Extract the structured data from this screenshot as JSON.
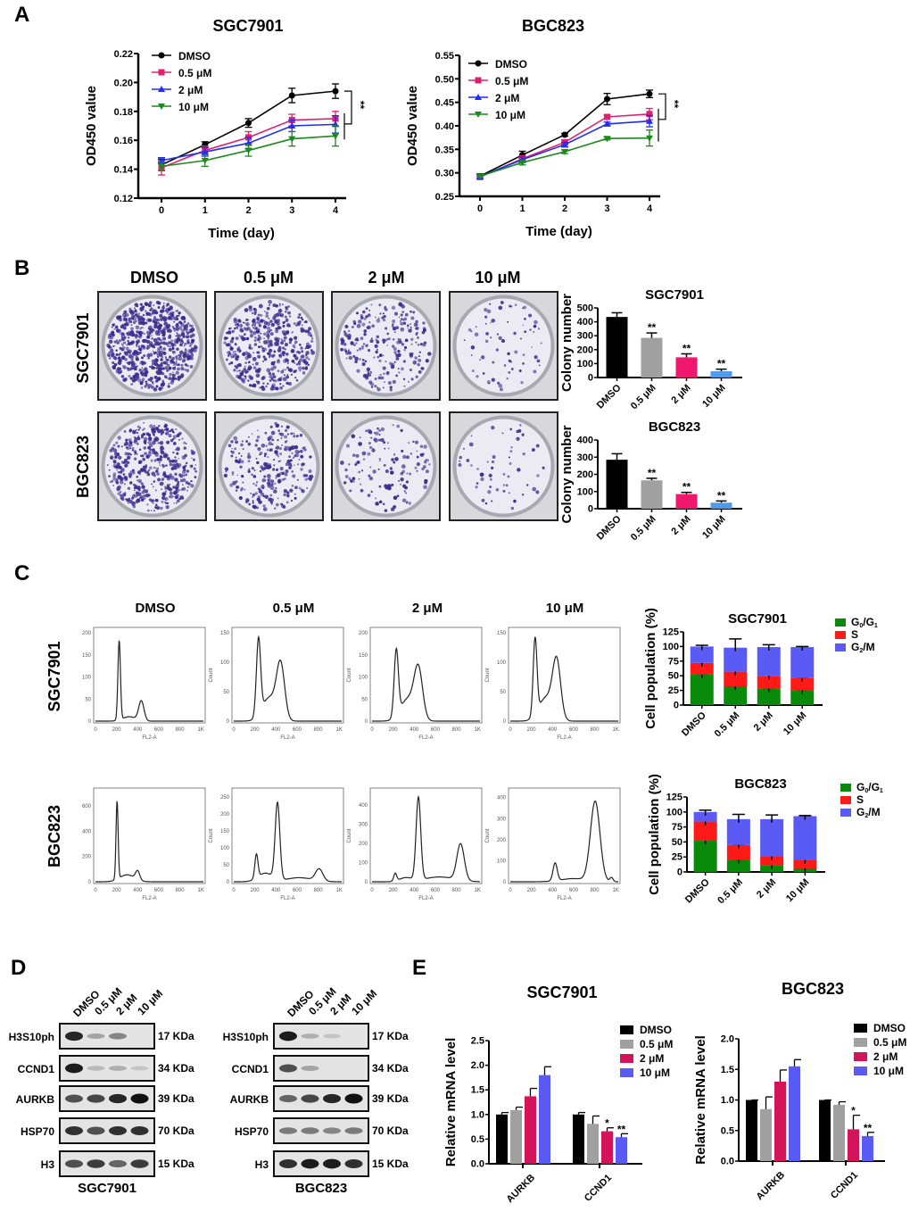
{
  "panels": {
    "A": "A",
    "B": "B",
    "C": "C",
    "D": "D",
    "E": "E"
  },
  "conditions": [
    "DMSO",
    "0.5 μM",
    "2 μM",
    "10 μM"
  ],
  "cell_lines": [
    "SGC7901",
    "BGC823"
  ],
  "significance": {
    "double": "**",
    "single": "*"
  },
  "colors": {
    "dmso": "#000000",
    "c05": "#e0206e",
    "c2": "#1f2df5",
    "c10": "#1a8a1a",
    "gray": "#a0a0a0",
    "pink": "#f0186e",
    "lightblue": "#4f9be8",
    "g0g1": "#0a8a0a",
    "s": "#ff1a1a",
    "g2m": "#5a5af5",
    "mrna_pink": "#d4145a",
    "mrna_blue": "#5a5af5"
  },
  "chart_data": [
    {
      "id": "A1",
      "type": "line",
      "title": "SGC7901",
      "xlabel": "Time (day)",
      "ylabel": "OD450 value",
      "x": [
        0,
        1,
        2,
        3,
        4
      ],
      "ylim": [
        0.12,
        0.22
      ],
      "yticks": [
        "0.12",
        "0.14",
        "0.16",
        "0.18",
        "0.20",
        "0.22"
      ],
      "legend": "top-left",
      "annotation": "**",
      "series": [
        {
          "name": "DMSO",
          "values": [
            0.143,
            0.157,
            0.172,
            0.191,
            0.194
          ],
          "err": [
            0.004,
            0.002,
            0.003,
            0.005,
            0.005
          ]
        },
        {
          "name": "0.5 μM",
          "values": [
            0.141,
            0.153,
            0.162,
            0.174,
            0.175
          ],
          "err": [
            0.005,
            0.003,
            0.004,
            0.004,
            0.005
          ]
        },
        {
          "name": "2 μM",
          "values": [
            0.146,
            0.152,
            0.158,
            0.17,
            0.171
          ],
          "err": [
            0.002,
            0.003,
            0.004,
            0.004,
            0.006
          ]
        },
        {
          "name": "10 μM",
          "values": [
            0.142,
            0.146,
            0.153,
            0.161,
            0.163
          ],
          "err": [
            0.003,
            0.004,
            0.004,
            0.005,
            0.007
          ]
        }
      ]
    },
    {
      "id": "A2",
      "type": "line",
      "title": "BGC823",
      "xlabel": "Time (day)",
      "ylabel": "OD450 value",
      "x": [
        0,
        1,
        2,
        3,
        4
      ],
      "ylim": [
        0.25,
        0.55
      ],
      "yticks": [
        "0.25",
        "0.30",
        "0.35",
        "0.40",
        "0.45",
        "0.50",
        "0.55"
      ],
      "legend": "top-left",
      "annotation": "**",
      "series": [
        {
          "name": "DMSO",
          "values": [
            0.293,
            0.338,
            0.381,
            0.457,
            0.468
          ],
          "err": [
            0.005,
            0.008,
            0.003,
            0.012,
            0.008
          ]
        },
        {
          "name": "0.5 μM",
          "values": [
            0.291,
            0.33,
            0.365,
            0.419,
            0.425
          ],
          "err": [
            0.004,
            0.006,
            0.005,
            0.004,
            0.012
          ]
        },
        {
          "name": "2 μM",
          "values": [
            0.292,
            0.328,
            0.36,
            0.404,
            0.41
          ],
          "err": [
            0.004,
            0.006,
            0.005,
            0.004,
            0.012
          ]
        },
        {
          "name": "10 μM",
          "values": [
            0.293,
            0.322,
            0.345,
            0.373,
            0.374
          ],
          "err": [
            0.004,
            0.005,
            0.004,
            0.003,
            0.017
          ]
        }
      ]
    },
    {
      "id": "B1",
      "type": "bar",
      "title": "SGC7901",
      "ylabel": "Colony number",
      "categories": [
        "DMSO",
        "0.5 μM",
        "2 μM",
        "10 μM"
      ],
      "values": [
        435,
        285,
        145,
        45
      ],
      "err": [
        30,
        35,
        25,
        15
      ],
      "ylim": [
        0,
        500
      ],
      "yticks": [
        "0",
        "100",
        "200",
        "300",
        "400",
        "500"
      ],
      "sig": [
        "",
        "**",
        "**",
        "**"
      ]
    },
    {
      "id": "B2",
      "type": "bar",
      "title": "BGC823",
      "ylabel": "Colony number",
      "categories": [
        "DMSO",
        "0.5 μM",
        "2 μM",
        "10 μM"
      ],
      "values": [
        285,
        165,
        85,
        35
      ],
      "err": [
        35,
        12,
        10,
        10
      ],
      "ylim": [
        0,
        400
      ],
      "yticks": [
        "0",
        "100",
        "200",
        "300",
        "400"
      ],
      "sig": [
        "",
        "**",
        "**",
        "**"
      ]
    },
    {
      "id": "C1",
      "type": "bar",
      "stacked": true,
      "title": "SGC7901",
      "ylabel": "Cell population (%)",
      "categories": [
        "DMSO",
        "0.5 μM",
        "2 μM",
        "10 μM"
      ],
      "ylim": [
        0,
        125
      ],
      "yticks": [
        "0",
        "25",
        "50",
        "75",
        "100",
        "125"
      ],
      "legend": "top-right",
      "series": [
        {
          "name": "G0/G1",
          "values": [
            52,
            32,
            28,
            25
          ],
          "err": [
            1,
            2,
            1,
            1
          ]
        },
        {
          "name": "S",
          "values": [
            20,
            25,
            22,
            21
          ],
          "err": [
            3,
            13,
            4,
            1
          ]
        },
        {
          "name": "G2/M",
          "values": [
            28,
            41,
            49,
            53
          ],
          "err": [
            2,
            15,
            4,
            1
          ]
        }
      ]
    },
    {
      "id": "C2",
      "type": "bar",
      "stacked": true,
      "title": "BGC823",
      "ylabel": "Cell population (%)",
      "categories": [
        "DMSO",
        "0.5 μM",
        "2 μM",
        "10 μM"
      ],
      "ylim": [
        0,
        125
      ],
      "yticks": [
        "0",
        "25",
        "50",
        "75",
        "100",
        "125"
      ],
      "legend": "top-right",
      "series": [
        {
          "name": "G0/G1",
          "values": [
            52,
            20,
            11,
            6
          ],
          "err": [
            2,
            1,
            6,
            2
          ]
        },
        {
          "name": "S",
          "values": [
            32,
            25,
            15,
            14
          ],
          "err": [
            5,
            1,
            2,
            5
          ]
        },
        {
          "name": "G2/M",
          "values": [
            16,
            43,
            62,
            73
          ],
          "err": [
            3,
            8,
            7,
            1
          ]
        }
      ]
    },
    {
      "id": "E1",
      "type": "bar",
      "title": "SGC7901",
      "ylabel": "Relative mRNA level",
      "categories": [
        "AURKB",
        "CCND1"
      ],
      "ylim": [
        0,
        2.5
      ],
      "yticks": [
        "0.0",
        "0.5",
        "1.0",
        "1.5",
        "2.0",
        "2.5"
      ],
      "legend": "top-right",
      "series": [
        {
          "name": "DMSO",
          "values": [
            1.0,
            1.0
          ],
          "err": [
            0.04,
            0.04
          ],
          "sig": [
            "",
            ""
          ]
        },
        {
          "name": "0.5  μM",
          "values": [
            1.09,
            0.81
          ],
          "err": [
            0.06,
            0.16
          ],
          "sig": [
            "",
            ""
          ]
        },
        {
          "name": "2  μM",
          "values": [
            1.37,
            0.66
          ],
          "err": [
            0.16,
            0.07
          ],
          "sig": [
            "",
            "*"
          ]
        },
        {
          "name": "10  μM",
          "values": [
            1.8,
            0.54
          ],
          "err": [
            0.17,
            0.07
          ],
          "sig": [
            "",
            "**"
          ]
        }
      ]
    },
    {
      "id": "E2",
      "type": "bar",
      "title": "BGC823",
      "ylabel": "Relative mRNA level",
      "categories": [
        "AURKB",
        "CCND1"
      ],
      "ylim": [
        0,
        2.0
      ],
      "yticks": [
        "0.0",
        "0.5",
        "1.0",
        "1.5",
        "2.0"
      ],
      "legend": "top-right",
      "series": [
        {
          "name": "DMSO",
          "values": [
            1.0,
            1.0
          ],
          "err": [
            0,
            0
          ],
          "sig": [
            "",
            ""
          ]
        },
        {
          "name": "0.5  μM",
          "values": [
            0.85,
            0.92
          ],
          "err": [
            0.2,
            0.05
          ],
          "sig": [
            "",
            ""
          ]
        },
        {
          "name": "2  μM",
          "values": [
            1.3,
            0.52
          ],
          "err": [
            0.19,
            0.23
          ],
          "sig": [
            "",
            "*"
          ]
        },
        {
          "name": "10  μM",
          "values": [
            1.55,
            0.41
          ],
          "err": [
            0.11,
            0.06
          ],
          "sig": [
            "",
            "**"
          ]
        }
      ]
    }
  ],
  "flow": {
    "xlabel": "FL2-A",
    "ylabel": "Count",
    "xticks": [
      "0",
      "200",
      "400",
      "600",
      "800",
      "1K"
    ],
    "histograms": [
      {
        "line": "SGC7901",
        "cond": "DMSO",
        "ymax": 200,
        "yticks": [
          "0",
          "50",
          "100",
          "150",
          "200"
        ],
        "peaks": [
          [
            225,
            180,
            12
          ],
          [
            435,
            45,
            25
          ],
          [
            320,
            10,
            60
          ]
        ]
      },
      {
        "line": "SGC7901",
        "cond": "0.5 μM",
        "ymax": 150,
        "yticks": [
          "0",
          "50",
          "100",
          "150"
        ],
        "peaks": [
          [
            235,
            130,
            20
          ],
          [
            445,
            90,
            38
          ],
          [
            340,
            40,
            70
          ]
        ]
      },
      {
        "line": "SGC7901",
        "cond": "2 μM",
        "ymax": 200,
        "yticks": [
          "0",
          "50",
          "100",
          "150",
          "200"
        ],
        "peaks": [
          [
            230,
            150,
            20
          ],
          [
            440,
            110,
            40
          ],
          [
            340,
            50,
            70
          ]
        ]
      },
      {
        "line": "SGC7901",
        "cond": "10 μM",
        "ymax": 150,
        "yticks": [
          "0",
          "50",
          "100",
          "150"
        ],
        "peaks": [
          [
            235,
            130,
            18
          ],
          [
            440,
            95,
            38
          ],
          [
            340,
            40,
            70
          ]
        ]
      },
      {
        "line": "BGC823",
        "cond": "DMSO",
        "ymax": 700,
        "yticks": [
          "0",
          "200",
          "400",
          "600"
        ],
        "peaks": [
          [
            205,
            620,
            10
          ],
          [
            400,
            70,
            20
          ],
          [
            300,
            55,
            70
          ]
        ]
      },
      {
        "line": "BGC823",
        "cond": "0.5 μM",
        "ymax": 260,
        "yticks": [
          "0",
          "50",
          "100",
          "150",
          "200",
          "250"
        ],
        "peaks": [
          [
            215,
            70,
            15
          ],
          [
            415,
            225,
            22
          ],
          [
            810,
            35,
            35
          ],
          [
            300,
            25,
            70
          ],
          [
            620,
            12,
            120
          ]
        ]
      },
      {
        "line": "BGC823",
        "cond": "2 μM",
        "ymax": 460,
        "yticks": [
          "0",
          "100",
          "200",
          "300",
          "400"
        ],
        "peaks": [
          [
            220,
            40,
            14
          ],
          [
            440,
            430,
            22
          ],
          [
            840,
            190,
            35
          ],
          [
            640,
            25,
            140
          ],
          [
            320,
            20,
            60
          ]
        ]
      },
      {
        "line": "BGC823",
        "cond": "10 μM",
        "ymax": 420,
        "yticks": [
          "0",
          "100",
          "200",
          "300",
          "400"
        ],
        "peaks": [
          [
            425,
            85,
            20
          ],
          [
            805,
            380,
            45
          ],
          [
            600,
            15,
            120
          ],
          [
            960,
            20,
            15
          ]
        ]
      }
    ]
  },
  "blots": {
    "rows": [
      "H3S10ph",
      "CCND1",
      "AURKB",
      "HSP70",
      "H3"
    ],
    "kda": [
      "17 KDa",
      "34 KDa",
      "39 KDa",
      "70 KDa",
      "15 KDa"
    ],
    "sets": [
      {
        "name": "SGC7901",
        "intensity": [
          [
            0.9,
            0.3,
            0.45,
            0
          ],
          [
            0.95,
            0.2,
            0.25,
            0.15
          ],
          [
            0.7,
            0.75,
            0.9,
            1.0
          ],
          [
            0.85,
            0.7,
            0.85,
            0.85
          ],
          [
            0.7,
            0.8,
            0.6,
            0.8
          ]
        ]
      },
      {
        "name": "BGC823",
        "intensity": [
          [
            0.95,
            0.25,
            0.15,
            0
          ],
          [
            0.7,
            0.3,
            0,
            0
          ],
          [
            0.6,
            0.75,
            0.9,
            1.0
          ],
          [
            0.5,
            0.5,
            0.45,
            0.5
          ],
          [
            0.85,
            0.95,
            0.95,
            0.85
          ]
        ]
      }
    ]
  }
}
